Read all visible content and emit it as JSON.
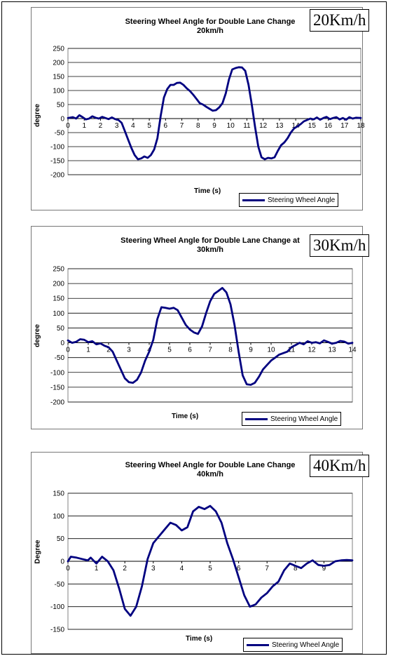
{
  "speed_tags": [
    "20Km/h",
    "30Km/h",
    "40Km/h"
  ],
  "chart_data": [
    {
      "type": "line",
      "title": "Steering Wheel Angle for Double Lane Change\n20km/h",
      "xlabel": "Time (s)",
      "ylabel": "degree",
      "xlim": [
        0,
        18
      ],
      "ylim": [
        -200,
        250
      ],
      "yticks": [
        -200,
        -150,
        -100,
        -50,
        0,
        50,
        100,
        150,
        200,
        250
      ],
      "xticks": [
        0,
        1,
        2,
        3,
        4,
        5,
        6,
        7,
        8,
        9,
        10,
        11,
        12,
        13,
        14,
        15,
        16,
        17,
        18
      ],
      "grid": "horizontal",
      "legend": "bottom-right",
      "series": [
        {
          "name": "Steering Wheel Angle",
          "color": "#000080",
          "x": [
            0,
            0.3,
            0.5,
            0.7,
            0.9,
            1.1,
            1.3,
            1.5,
            1.7,
            1.9,
            2.1,
            2.3,
            2.5,
            2.7,
            2.9,
            3.1,
            3.3,
            3.5,
            3.7,
            3.9,
            4.1,
            4.3,
            4.5,
            4.7,
            4.9,
            5.1,
            5.3,
            5.5,
            5.7,
            5.9,
            6.1,
            6.3,
            6.5,
            6.7,
            6.9,
            7.1,
            7.3,
            7.5,
            7.7,
            7.9,
            8.1,
            8.3,
            8.5,
            8.7,
            8.9,
            9.1,
            9.3,
            9.5,
            9.7,
            9.9,
            10.1,
            10.3,
            10.5,
            10.7,
            10.9,
            11.1,
            11.3,
            11.5,
            11.7,
            11.9,
            12.1,
            12.3,
            12.5,
            12.7,
            12.9,
            13.1,
            13.3,
            13.5,
            13.7,
            13.9,
            14.1,
            14.3,
            14.5,
            14.7,
            14.9,
            15.1,
            15.3,
            15.5,
            15.7,
            15.9,
            16.1,
            16.3,
            16.5,
            16.7,
            16.9,
            17.1,
            17.3,
            17.5,
            17.7,
            18
          ],
          "y": [
            2,
            5,
            0,
            12,
            5,
            -3,
            0,
            8,
            3,
            0,
            6,
            2,
            -2,
            4,
            -2,
            -5,
            -15,
            -45,
            -75,
            -105,
            -130,
            -145,
            -142,
            -135,
            -140,
            -130,
            -110,
            -70,
            10,
            75,
            105,
            120,
            120,
            127,
            128,
            120,
            108,
            98,
            85,
            70,
            55,
            50,
            42,
            35,
            28,
            30,
            40,
            55,
            90,
            140,
            175,
            180,
            183,
            182,
            170,
            120,
            50,
            -30,
            -100,
            -138,
            -145,
            -140,
            -142,
            -138,
            -115,
            -95,
            -85,
            -70,
            -50,
            -35,
            -28,
            -20,
            -10,
            -5,
            0,
            -3,
            4,
            -4,
            2,
            6,
            -2,
            2,
            5,
            -3,
            2,
            -4,
            5,
            0,
            3,
            2
          ]
        }
      ]
    },
    {
      "type": "line",
      "title": "Steering Wheel Angle for Double Lane Change at\n30km/h",
      "xlabel": "Time (s)",
      "ylabel": "degree",
      "xlim": [
        0,
        14
      ],
      "ylim": [
        -200,
        250
      ],
      "yticks": [
        -200,
        -150,
        -100,
        -50,
        0,
        50,
        100,
        150,
        200,
        250
      ],
      "xticks": [
        0,
        1,
        2,
        3,
        4,
        5,
        6,
        7,
        8,
        9,
        10,
        11,
        12,
        13,
        14
      ],
      "grid": "horizontal",
      "legend": "bottom-right",
      "series": [
        {
          "name": "Steering Wheel Angle",
          "color": "#000080",
          "x": [
            0,
            0.2,
            0.4,
            0.6,
            0.8,
            1.0,
            1.2,
            1.4,
            1.6,
            1.8,
            2.0,
            2.2,
            2.4,
            2.6,
            2.8,
            3.0,
            3.2,
            3.4,
            3.6,
            3.8,
            4.0,
            4.2,
            4.4,
            4.6,
            4.8,
            5.0,
            5.2,
            5.4,
            5.6,
            5.8,
            6.0,
            6.2,
            6.4,
            6.6,
            6.8,
            7.0,
            7.2,
            7.4,
            7.6,
            7.8,
            8.0,
            8.2,
            8.4,
            8.6,
            8.8,
            9.0,
            9.2,
            9.4,
            9.6,
            9.8,
            10.0,
            10.2,
            10.4,
            10.6,
            10.8,
            11.0,
            11.2,
            11.4,
            11.6,
            11.8,
            12.0,
            12.2,
            12.4,
            12.6,
            12.8,
            13.0,
            13.2,
            13.4,
            13.6,
            13.8,
            14
          ],
          "y": [
            8,
            0,
            3,
            12,
            10,
            2,
            5,
            -5,
            -2,
            -10,
            -15,
            -30,
            -60,
            -90,
            -120,
            -133,
            -135,
            -125,
            -100,
            -60,
            -30,
            10,
            80,
            120,
            118,
            115,
            118,
            110,
            85,
            60,
            45,
            35,
            30,
            55,
            100,
            140,
            165,
            175,
            185,
            170,
            130,
            60,
            -30,
            -110,
            -140,
            -142,
            -135,
            -115,
            -90,
            -75,
            -60,
            -50,
            -40,
            -35,
            -30,
            -15,
            -8,
            0,
            -5,
            5,
            0,
            2,
            -2,
            8,
            3,
            -3,
            0,
            6,
            4,
            -3,
            0
          ]
        }
      ]
    },
    {
      "type": "line",
      "title": "Steering Wheel Angle for Double Lane Change\n40km/h",
      "xlabel": "Time (s)",
      "ylabel": "Degree",
      "xlim": [
        0,
        10
      ],
      "ylim": [
        -150,
        150
      ],
      "yticks": [
        -150,
        -100,
        -50,
        0,
        50,
        100,
        150
      ],
      "xticks": [
        0,
        1,
        2,
        3,
        4,
        5,
        6,
        7,
        8,
        9
      ],
      "grid": "horizontal",
      "legend": "bottom-right",
      "series": [
        {
          "name": "Steering Wheel Angle",
          "color": "#000080",
          "x": [
            0,
            0.1,
            0.3,
            0.5,
            0.7,
            0.8,
            1.0,
            1.2,
            1.4,
            1.6,
            1.8,
            2.0,
            2.2,
            2.4,
            2.6,
            2.8,
            3.0,
            3.2,
            3.4,
            3.6,
            3.8,
            4.0,
            4.2,
            4.4,
            4.6,
            4.8,
            5.0,
            5.2,
            5.4,
            5.6,
            5.8,
            6.0,
            6.2,
            6.4,
            6.6,
            6.8,
            7.0,
            7.2,
            7.4,
            7.6,
            7.8,
            8.0,
            8.2,
            8.4,
            8.6,
            8.8,
            9.0,
            9.2,
            9.4,
            9.6,
            9.8,
            10
          ],
          "y": [
            0,
            10,
            8,
            5,
            2,
            8,
            -5,
            10,
            0,
            -20,
            -60,
            -105,
            -120,
            -100,
            -55,
            5,
            40,
            55,
            70,
            85,
            80,
            68,
            75,
            110,
            120,
            115,
            122,
            110,
            85,
            40,
            5,
            -35,
            -75,
            -100,
            -95,
            -80,
            -70,
            -55,
            -45,
            -20,
            -5,
            -10,
            -15,
            -5,
            2,
            -8,
            -10,
            -8,
            0,
            2,
            3,
            2
          ]
        }
      ]
    }
  ]
}
